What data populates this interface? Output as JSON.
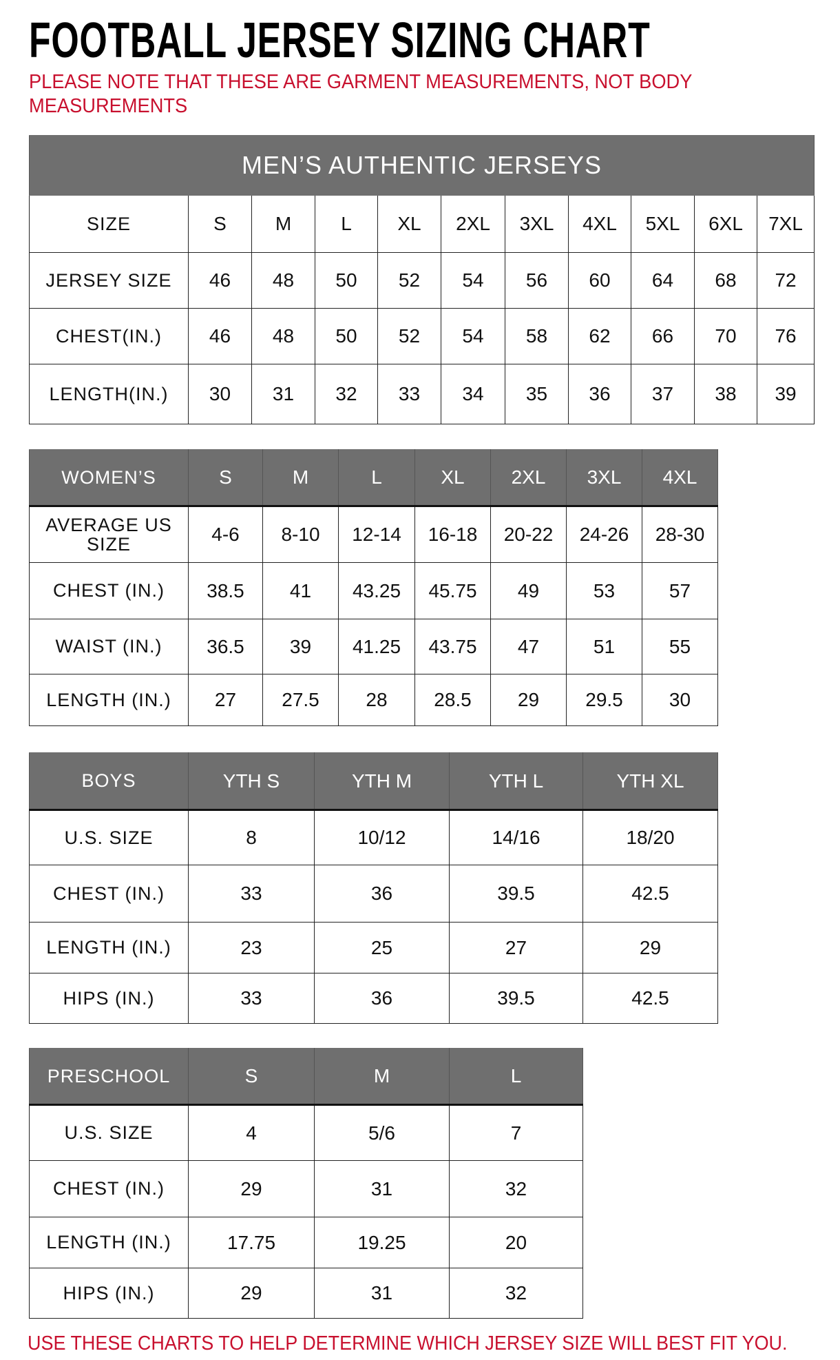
{
  "title": "FOOTBALL JERSEY SIZING CHART",
  "note": "PLEASE NOTE THAT THESE ARE GARMENT MEASUREMENTS, NOT BODY MEASUREMENTS",
  "footer": "USE THESE CHARTS TO HELP DETERMINE WHICH JERSEY SIZE WILL BEST FIT YOU.",
  "colors": {
    "header_bg": "#6f6f6f",
    "accent_red": "#c8102e"
  },
  "tables": {
    "mens": {
      "banner": "MEN’S AUTHENTIC JERSEYS",
      "header": [
        "SIZE",
        "S",
        "M",
        "L",
        "XL",
        "2XL",
        "3XL",
        "4XL",
        "5XL",
        "6XL",
        "7XL"
      ],
      "rows": [
        [
          "JERSEY SIZE",
          "46",
          "48",
          "50",
          "52",
          "54",
          "56",
          "60",
          "64",
          "68",
          "72"
        ],
        [
          "CHEST(IN.)",
          "46",
          "48",
          "50",
          "52",
          "54",
          "58",
          "62",
          "66",
          "70",
          "76"
        ],
        [
          "LENGTH(IN.)",
          "30",
          "31",
          "32",
          "33",
          "34",
          "35",
          "36",
          "37",
          "38",
          "39"
        ]
      ]
    },
    "womens": {
      "header": [
        "WOMEN’S",
        "S",
        "M",
        "L",
        "XL",
        "2XL",
        "3XL",
        "4XL"
      ],
      "rows": [
        [
          "AVERAGE US SIZE",
          "4-6",
          "8-10",
          "12-14",
          "16-18",
          "20-22",
          "24-26",
          "28-30"
        ],
        [
          "CHEST (IN.)",
          "38.5",
          "41",
          "43.25",
          "45.75",
          "49",
          "53",
          "57"
        ],
        [
          "WAIST (IN.)",
          "36.5",
          "39",
          "41.25",
          "43.75",
          "47",
          "51",
          "55"
        ],
        [
          "LENGTH (IN.)",
          "27",
          "27.5",
          "28",
          "28.5",
          "29",
          "29.5",
          "30"
        ]
      ]
    },
    "boys": {
      "header": [
        "BOYS",
        "YTH S",
        "YTH M",
        "YTH L",
        "YTH XL"
      ],
      "rows": [
        [
          "U.S. SIZE",
          "8",
          "10/12",
          "14/16",
          "18/20"
        ],
        [
          "CHEST (IN.)",
          "33",
          "36",
          "39.5",
          "42.5"
        ],
        [
          "LENGTH (IN.)",
          "23",
          "25",
          "27",
          "29"
        ],
        [
          "HIPS (IN.)",
          "33",
          "36",
          "39.5",
          "42.5"
        ]
      ]
    },
    "preschool": {
      "header": [
        "PRESCHOOL",
        "S",
        "M",
        "L"
      ],
      "rows": [
        [
          "U.S. SIZE",
          "4",
          "5/6",
          "7"
        ],
        [
          "CHEST (IN.)",
          "29",
          "31",
          "32"
        ],
        [
          "LENGTH (IN.)",
          "17.75",
          "19.25",
          "20"
        ],
        [
          "HIPS (IN.)",
          "29",
          "31",
          "32"
        ]
      ]
    }
  }
}
